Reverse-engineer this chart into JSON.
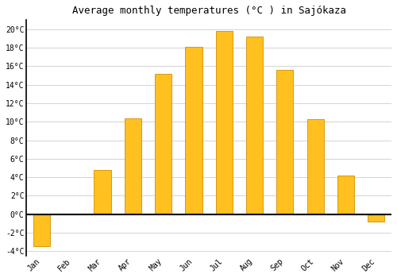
{
  "months": [
    "Jan",
    "Feb",
    "Mar",
    "Apr",
    "May",
    "Jun",
    "Jul",
    "Aug",
    "Sep",
    "Oct",
    "Nov",
    "Dec"
  ],
  "values": [
    -3.5,
    0.0,
    4.8,
    10.4,
    15.2,
    18.1,
    19.8,
    19.2,
    15.6,
    10.3,
    4.2,
    -0.8
  ],
  "bar_color": "#FFC020",
  "bar_edge_color": "#D09000",
  "title": "Average monthly temperatures (°C ) in Sajókaza",
  "title_fontsize": 9,
  "ylim": [
    -4.5,
    21
  ],
  "yticks": [
    -4,
    -2,
    0,
    2,
    4,
    6,
    8,
    10,
    12,
    14,
    16,
    18,
    20
  ],
  "background_color": "#ffffff",
  "grid_color": "#cccccc",
  "zero_line_color": "#000000",
  "spine_color": "#000000"
}
